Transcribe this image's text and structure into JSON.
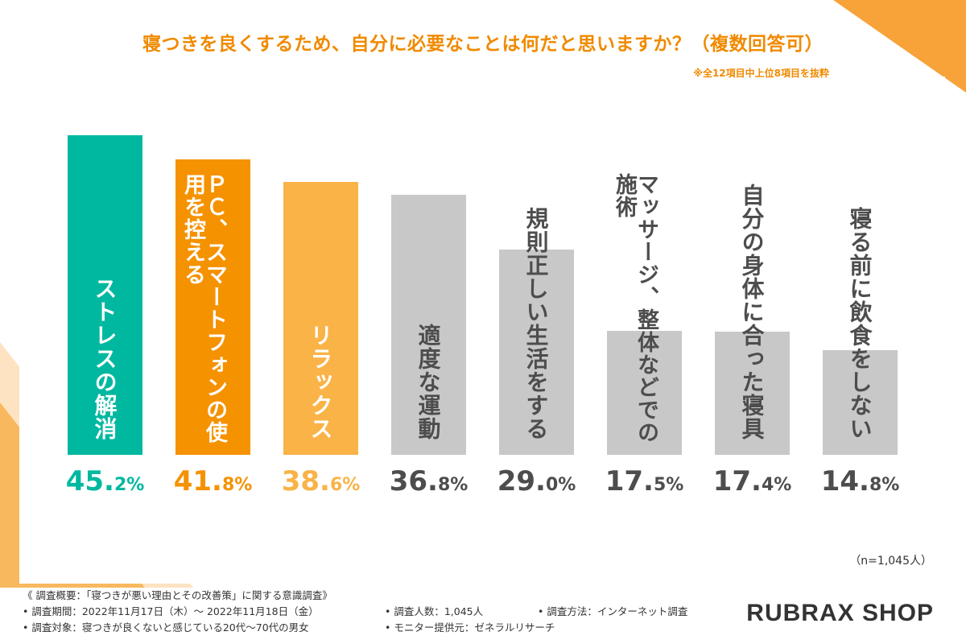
{
  "title": "寝つきを良くするため、自分に必要なことは何だと思いますか？（複数回答可）",
  "subnote": "※全12項目中上位8項目を抜粋",
  "n_note": "（n=1,045人）",
  "brand": "RUBRAX SHOP",
  "colors": {
    "title": "#f08a00",
    "teal": "#00b8a0",
    "orange": "#f59200",
    "light_orange": "#f9b347",
    "gray": "#c8c8c8"
  },
  "footer": {
    "overview": "《 調査概要：「寝つきが悪い理由とその改善策」に関する意識調査》",
    "period": "• 調査期間：2022年11月17日（木）～ 2022年11月18日（金）",
    "count": "• 調査人数：1,045人",
    "method": "• 調査方法：インターネット調査",
    "target": "• 調査対象：寝つきが良くないと感じている20代～70代の男女",
    "provider": "• モニター提供元：ゼネラルリサーチ"
  },
  "chart_data": {
    "type": "bar",
    "title": "寝つきを良くするため、自分に必要なことは何だと思いますか？（複数回答可）",
    "categories": [
      "ストレスの解消",
      "ＰＣ、スマートフォンの使用を控える",
      "リラックス",
      "適度な運動",
      "規則正しい生活をする",
      "マッサージ、整体などでの施術",
      "自分の身体に合った寝具",
      "寝る前に飲食をしない"
    ],
    "values": [
      45.2,
      41.8,
      38.6,
      36.8,
      29.0,
      17.5,
      17.4,
      14.8
    ],
    "value_labels": [
      [
        "45.",
        "2%"
      ],
      [
        "41.",
        "8%"
      ],
      [
        "38.",
        "6%"
      ],
      [
        "36.",
        "8%"
      ],
      [
        "29.",
        "0%"
      ],
      [
        "17.",
        "5%"
      ],
      [
        "17.",
        "4%"
      ],
      [
        "14.",
        "8%"
      ]
    ],
    "bar_colors": [
      "#00b8a0",
      "#f59200",
      "#f9b347",
      "#c8c8c8",
      "#c8c8c8",
      "#c8c8c8",
      "#c8c8c8",
      "#c8c8c8"
    ],
    "label_colors": [
      "#ffffff",
      "#ffffff",
      "#ffffff",
      "#4d4d4d",
      "#4d4d4d",
      "#4d4d4d",
      "#4d4d4d",
      "#4d4d4d"
    ],
    "pct_colors": [
      "#00b8a0",
      "#f59200",
      "#f9b347",
      "#4d4d4d",
      "#4d4d4d",
      "#4d4d4d",
      "#4d4d4d",
      "#4d4d4d"
    ],
    "ylim": [
      0,
      45.2
    ],
    "grid": false
  }
}
